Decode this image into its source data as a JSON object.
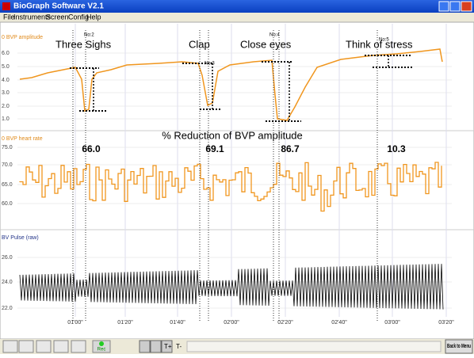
{
  "window": {
    "title": "BioGraph Software V2.1",
    "menu": [
      "File",
      "Instruments",
      "Screen",
      "Config",
      "Help"
    ]
  },
  "panels": [
    {
      "label": "0 BVP amplitude",
      "ticks": [
        "6.0",
        "5.0",
        "4.0",
        "3.0",
        "2.0",
        "1.0"
      ]
    },
    {
      "label": "0 BVP heart rate",
      "ticks": [
        "75.0",
        "70.0",
        "65.0",
        "60.0"
      ]
    },
    {
      "label": "BV Pulse (raw)",
      "ticks": [
        "26.0",
        "24.0",
        "22.0"
      ]
    }
  ],
  "time_axis": [
    "01'00\"",
    "01'20\"",
    "01'40\"",
    "02'00\"",
    "02'20\"",
    "02'40\"",
    "03'00\"",
    "03'20\""
  ],
  "annotations": {
    "events": [
      "Three Sighs",
      "Clap",
      "Close eyes",
      "Think of stress"
    ],
    "markers": [
      "No:2",
      "No:3",
      "No:4",
      "No:5"
    ],
    "heading": "% Reduction of BVP amplitude",
    "reductions": [
      "66.0",
      "69.1",
      "86.7",
      "10.3"
    ]
  },
  "toolbar": {
    "rec": "Rec",
    "zoom_in": "T+",
    "zoom_out": "T-",
    "back": "Back to Menu"
  }
}
